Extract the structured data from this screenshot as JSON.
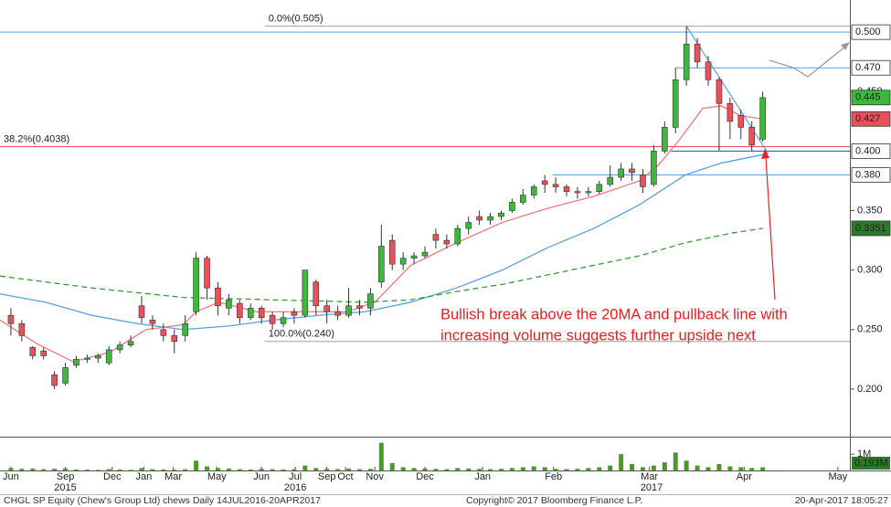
{
  "chart_data": {
    "type": "candlestick",
    "xlim": [
      0,
      78
    ],
    "ylim": [
      0.16,
      0.527
    ],
    "yticks": [
      {
        "value": 0.2,
        "label": "0.200"
      },
      {
        "value": 0.25,
        "label": "0.250"
      },
      {
        "value": 0.3,
        "label": "0.300"
      },
      {
        "value": 0.35,
        "label": "0.350"
      },
      {
        "value": 0.45,
        "label": "0.450"
      }
    ],
    "xticks": [
      {
        "value": 1,
        "label": "Jun"
      },
      {
        "value": 6,
        "label": "Sep"
      },
      {
        "value": 10.3,
        "label": "Dec"
      },
      {
        "value": 13.2,
        "label": "Jan"
      },
      {
        "value": 15.9,
        "label": "Mar"
      },
      {
        "value": 19.9,
        "label": "May"
      },
      {
        "value": 24,
        "label": "Jun"
      },
      {
        "value": 27.1,
        "label": "Jul"
      },
      {
        "value": 30,
        "label": "Sep"
      },
      {
        "value": 31.7,
        "label": "Oct"
      },
      {
        "value": 34.4,
        "label": "Nov"
      },
      {
        "value": 39,
        "label": "Dec"
      },
      {
        "value": 44.3,
        "label": "Jan"
      },
      {
        "value": 50.8,
        "label": "Feb"
      },
      {
        "value": 59.6,
        "label": "Mar"
      },
      {
        "value": 68.3,
        "label": "Apr"
      },
      {
        "value": 76.9,
        "label": "May"
      }
    ],
    "year_ticks": [
      {
        "value": 6,
        "label": "2015"
      },
      {
        "value": 27.1,
        "label": "2016"
      },
      {
        "value": 59.8,
        "label": "2017"
      }
    ],
    "up_color": "#3cb83c",
    "down_color": "#e8505a",
    "candles": [
      [
        0.262,
        0.268,
        0.245,
        0.255
      ],
      [
        0.255,
        0.258,
        0.24,
        0.245
      ],
      [
        0.235,
        0.236,
        0.225,
        0.228
      ],
      [
        0.232,
        0.235,
        0.225,
        0.228
      ],
      [
        0.212,
        0.215,
        0.2,
        0.203
      ],
      [
        0.205,
        0.222,
        0.203,
        0.218
      ],
      [
        0.22,
        0.228,
        0.218,
        0.225
      ],
      [
        0.225,
        0.229,
        0.222,
        0.226
      ],
      [
        0.226,
        0.23,
        0.222,
        0.228
      ],
      [
        0.222,
        0.236,
        0.22,
        0.233
      ],
      [
        0.233,
        0.24,
        0.23,
        0.237
      ],
      [
        0.237,
        0.245,
        0.235,
        0.24
      ],
      [
        0.27,
        0.278,
        0.255,
        0.26
      ],
      [
        0.258,
        0.262,
        0.25,
        0.255
      ],
      [
        0.25,
        0.255,
        0.24,
        0.245
      ],
      [
        0.245,
        0.25,
        0.23,
        0.24
      ],
      [
        0.245,
        0.262,
        0.24,
        0.255
      ],
      [
        0.265,
        0.315,
        0.262,
        0.31
      ],
      [
        0.31,
        0.312,
        0.275,
        0.285
      ],
      [
        0.285,
        0.29,
        0.262,
        0.27
      ],
      [
        0.268,
        0.28,
        0.262,
        0.275
      ],
      [
        0.272,
        0.275,
        0.255,
        0.26
      ],
      [
        0.26,
        0.272,
        0.258,
        0.268
      ],
      [
        0.268,
        0.27,
        0.255,
        0.26
      ],
      [
        0.262,
        0.265,
        0.25,
        0.255
      ],
      [
        0.255,
        0.265,
        0.252,
        0.26
      ],
      [
        0.265,
        0.268,
        0.255,
        0.262
      ],
      [
        0.262,
        0.3,
        0.26,
        0.3
      ],
      [
        0.29,
        0.292,
        0.262,
        0.27
      ],
      [
        0.27,
        0.275,
        0.255,
        0.265
      ],
      [
        0.265,
        0.27,
        0.258,
        0.262
      ],
      [
        0.262,
        0.285,
        0.26,
        0.27
      ],
      [
        0.27,
        0.275,
        0.262,
        0.268
      ],
      [
        0.268,
        0.285,
        0.262,
        0.28
      ],
      [
        0.29,
        0.338,
        0.285,
        0.32
      ],
      [
        0.325,
        0.33,
        0.3,
        0.305
      ],
      [
        0.305,
        0.315,
        0.3,
        0.31
      ],
      [
        0.31,
        0.315,
        0.305,
        0.312
      ],
      [
        0.312,
        0.32,
        0.31,
        0.315
      ],
      [
        0.33,
        0.335,
        0.318,
        0.325
      ],
      [
        0.325,
        0.33,
        0.318,
        0.322
      ],
      [
        0.322,
        0.338,
        0.32,
        0.335
      ],
      [
        0.335,
        0.345,
        0.33,
        0.34
      ],
      [
        0.345,
        0.35,
        0.338,
        0.342
      ],
      [
        0.342,
        0.348,
        0.338,
        0.345
      ],
      [
        0.345,
        0.35,
        0.342,
        0.348
      ],
      [
        0.35,
        0.36,
        0.348,
        0.357
      ],
      [
        0.357,
        0.368,
        0.355,
        0.363
      ],
      [
        0.363,
        0.372,
        0.36,
        0.37
      ],
      [
        0.375,
        0.38,
        0.365,
        0.372
      ],
      [
        0.372,
        0.378,
        0.365,
        0.37
      ],
      [
        0.37,
        0.372,
        0.362,
        0.366
      ],
      [
        0.366,
        0.37,
        0.36,
        0.365
      ],
      [
        0.365,
        0.37,
        0.362,
        0.366
      ],
      [
        0.366,
        0.375,
        0.364,
        0.372
      ],
      [
        0.372,
        0.388,
        0.37,
        0.378
      ],
      [
        0.378,
        0.39,
        0.375,
        0.385
      ],
      [
        0.385,
        0.39,
        0.375,
        0.382
      ],
      [
        0.38,
        0.385,
        0.365,
        0.37
      ],
      [
        0.372,
        0.405,
        0.37,
        0.4
      ],
      [
        0.4,
        0.425,
        0.398,
        0.42
      ],
      [
        0.42,
        0.47,
        0.415,
        0.46
      ],
      [
        0.46,
        0.505,
        0.455,
        0.49
      ],
      [
        0.49,
        0.495,
        0.47,
        0.475
      ],
      [
        0.475,
        0.48,
        0.455,
        0.46
      ],
      [
        0.46,
        0.462,
        0.4,
        0.44
      ],
      [
        0.44,
        0.445,
        0.41,
        0.425
      ],
      [
        0.43,
        0.435,
        0.41,
        0.42
      ],
      [
        0.42,
        0.425,
        0.4,
        0.405
      ],
      [
        0.41,
        0.45,
        0.408,
        0.445
      ]
    ],
    "last_tag": {
      "value": 0.445,
      "label": "0.445",
      "color": "#3cb83c"
    },
    "overlays": [
      {
        "color": "#f07880",
        "dash": false,
        "x": [
          0,
          3.4,
          6.7,
          10.1,
          13.4,
          16.8,
          18,
          20.1,
          23.5,
          27.7,
          31.9,
          34.4,
          37.7,
          41.9,
          46.1,
          50.3,
          54.5,
          58.7,
          60.4,
          62.4,
          64.5,
          66.2,
          67.9,
          70
        ],
        "values": [
          0.258,
          0.238,
          0.223,
          0.231,
          0.25,
          0.254,
          0.265,
          0.273,
          0.265,
          0.265,
          0.265,
          0.273,
          0.304,
          0.323,
          0.34,
          0.352,
          0.362,
          0.375,
          0.388,
          0.41,
          0.436,
          0.438,
          0.43,
          0.427
        ],
        "last_tag": {
          "value": 0.427,
          "label": "0.427",
          "color": "#e8505a"
        }
      },
      {
        "color": "#5aa0e0",
        "dash": false,
        "x": [
          0,
          4.2,
          8.4,
          12.6,
          16.8,
          21,
          25.1,
          29.3,
          33.5,
          37.7,
          41.9,
          46.1,
          50.3,
          54.5,
          58.7,
          62.9,
          66.2,
          70
        ],
        "values": [
          0.28,
          0.273,
          0.262,
          0.255,
          0.25,
          0.253,
          0.258,
          0.262,
          0.265,
          0.273,
          0.285,
          0.3,
          0.319,
          0.335,
          0.355,
          0.38,
          0.39,
          0.397
        ]
      },
      {
        "color": "#3a9a3a",
        "dash": true,
        "x": [
          0,
          8.4,
          16.8,
          25.1,
          33.5,
          37.7,
          41.9,
          46.1,
          50.3,
          54.5,
          58.7,
          62.9,
          67.1,
          70
        ],
        "values": [
          0.295,
          0.285,
          0.277,
          0.275,
          0.273,
          0.275,
          0.282,
          0.288,
          0.296,
          0.304,
          0.312,
          0.323,
          0.331,
          0.3351
        ],
        "last_tag": {
          "value": 0.3351,
          "label": "0.3351",
          "color": "#2a7a2a"
        }
      }
    ],
    "levels": [
      {
        "value": 0.505,
        "label": "0.0%(0.505)",
        "color": "#a0a0a0",
        "from": 24.3,
        "label_position": "left"
      },
      {
        "value": 0.4038,
        "label": "38.2%(0.4038)",
        "color": "#e8505a",
        "from": 0,
        "label_position": "left"
      },
      {
        "value": 0.24,
        "label": "100.0%(0.240)",
        "color": "#a0a0a0",
        "from": 24.3,
        "label_position": "left"
      },
      {
        "value": 0.5,
        "label": "0.500",
        "color": "#5aa0e0",
        "from": 0,
        "label_position": "axis"
      },
      {
        "value": 0.47,
        "label": "0.470",
        "color": "#5aa0e0",
        "from": 62,
        "label_position": "axis"
      },
      {
        "value": 0.4,
        "label": "0.400",
        "color": "#2050a0",
        "from": 61.6,
        "label_position": "axis"
      },
      {
        "value": 0.38,
        "label": "0.380",
        "color": "#5aa0e0",
        "from": 50.7,
        "label_position": "axis"
      }
    ],
    "trendline": {
      "color": "#5aa0e0",
      "x": [
        63,
        70.5
      ],
      "values": [
        0.505,
        0.398
      ]
    },
    "annotation": [
      "Bullish break above the 20MA and pullback line with",
      "increasing volume suggests further upside next"
    ],
    "volume": {
      "color": "#4a9a2a",
      "ylim": [
        0,
        1850000
      ],
      "yticks": [
        {
          "value": 1000000,
          "label": "1M"
        }
      ],
      "values": [
        150000,
        100000,
        120000,
        80000,
        100000,
        120000,
        60000,
        50000,
        40000,
        80000,
        60000,
        40000,
        150000,
        80000,
        60000,
        50000,
        80000,
        600000,
        250000,
        150000,
        120000,
        80000,
        60000,
        100000,
        80000,
        60000,
        80000,
        300000,
        150000,
        100000,
        80000,
        120000,
        80000,
        100000,
        1700000,
        450000,
        200000,
        150000,
        120000,
        100000,
        80000,
        150000,
        120000,
        100000,
        80000,
        100000,
        150000,
        200000,
        250000,
        200000,
        100000,
        80000,
        100000,
        150000,
        200000,
        300000,
        1000000,
        400000,
        200000,
        300000,
        500000,
        1100000,
        600000,
        300000,
        200000,
        400000,
        250000,
        200000,
        150000,
        193000
      ],
      "last_tag": {
        "value": 193000,
        "label": "0.193M",
        "color": "#2a7a2a"
      }
    },
    "footer": {
      "left": "CHGL SP Equity (Chew's Group Ltd) chews  Daily 14JUL2016-20APR2017",
      "center": "Copyright© 2017 Bloomberg Finance L.P.",
      "right": "20-Apr-2017 18:05:27"
    }
  }
}
